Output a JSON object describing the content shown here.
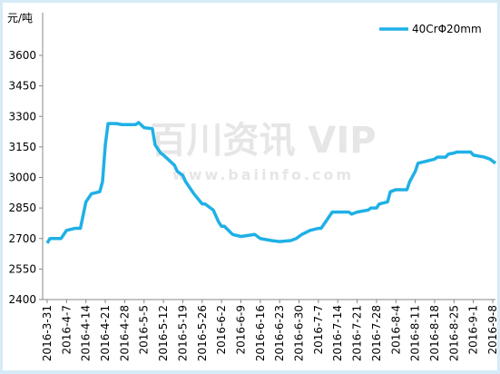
{
  "chart_data": {
    "type": "line",
    "y_label": "元/吨",
    "watermark": "百川资讯 VIP",
    "watermark_url": "www.baiinfo.com",
    "xticks": [
      "2016-3-31",
      "2016-4-7",
      "2016-4-14",
      "2016-4-21",
      "2016-4-28",
      "2016-5-5",
      "2016-5-12",
      "2016-5-19",
      "2016-5-26",
      "2016-6-2",
      "2016-6-9",
      "2016-6-16",
      "2016-6-23",
      "2016-6-30",
      "2016-7-7",
      "2016-7-14",
      "2016-7-21",
      "2016-7-28",
      "2016-8-4",
      "2016-8-11",
      "2016-8-18",
      "2016-8-25",
      "2016-9-1",
      "2016-9-8"
    ],
    "ylim": [
      2400,
      3600
    ],
    "yticks": [
      2400,
      2550,
      2700,
      2850,
      3000,
      3150,
      3300,
      3450,
      3600
    ],
    "legend": "top-right",
    "series": [
      {
        "name": "40CrΦ20mm",
        "color": "#1fb0e6",
        "x": [
          "2016-3-31",
          "2016-4-1",
          "2016-4-5",
          "2016-4-7",
          "2016-4-10",
          "2016-4-12",
          "2016-4-14",
          "2016-4-16",
          "2016-4-19",
          "2016-4-20",
          "2016-4-21",
          "2016-4-22",
          "2016-4-25",
          "2016-4-27",
          "2016-4-28",
          "2016-5-2",
          "2016-5-3",
          "2016-5-5",
          "2016-5-8",
          "2016-5-9",
          "2016-5-11",
          "2016-5-12",
          "2016-5-16",
          "2016-5-17",
          "2016-5-19",
          "2016-5-20",
          "2016-5-23",
          "2016-5-26",
          "2016-5-27",
          "2016-5-30",
          "2016-6-1",
          "2016-6-2",
          "2016-6-3",
          "2016-6-6",
          "2016-6-9",
          "2016-6-14",
          "2016-6-16",
          "2016-6-20",
          "2016-6-23",
          "2016-6-27",
          "2016-6-29",
          "2016-6-30",
          "2016-7-1",
          "2016-7-4",
          "2016-7-7",
          "2016-7-8",
          "2016-7-11",
          "2016-7-12",
          "2016-7-14",
          "2016-7-18",
          "2016-7-19",
          "2016-7-21",
          "2016-7-25",
          "2016-7-26",
          "2016-7-28",
          "2016-7-29",
          "2016-8-1",
          "2016-8-2",
          "2016-8-4",
          "2016-8-8",
          "2016-8-9",
          "2016-8-11",
          "2016-8-12",
          "2016-8-15",
          "2016-8-18",
          "2016-8-19",
          "2016-8-22",
          "2016-8-23",
          "2016-8-25",
          "2016-8-26",
          "2016-8-31",
          "2016-9-1",
          "2016-9-5",
          "2016-9-7",
          "2016-9-8",
          "2016-9-9"
        ],
        "values": [
          2677,
          2700,
          2700,
          2740,
          2750,
          2750,
          2880,
          2920,
          2930,
          2980,
          3160,
          3265,
          3265,
          3260,
          3260,
          3260,
          3270,
          3245,
          3240,
          3160,
          3120,
          3110,
          3060,
          3030,
          3010,
          2980,
          2920,
          2870,
          2870,
          2840,
          2780,
          2760,
          2760,
          2720,
          2710,
          2720,
          2700,
          2690,
          2685,
          2690,
          2700,
          2710,
          2720,
          2740,
          2750,
          2750,
          2810,
          2830,
          2830,
          2830,
          2820,
          2830,
          2840,
          2850,
          2850,
          2870,
          2880,
          2930,
          2940,
          2940,
          2980,
          3030,
          3070,
          3080,
          3090,
          3100,
          3100,
          3115,
          3120,
          3125,
          3125,
          3110,
          3100,
          3090,
          3080,
          3070
        ]
      }
    ]
  }
}
